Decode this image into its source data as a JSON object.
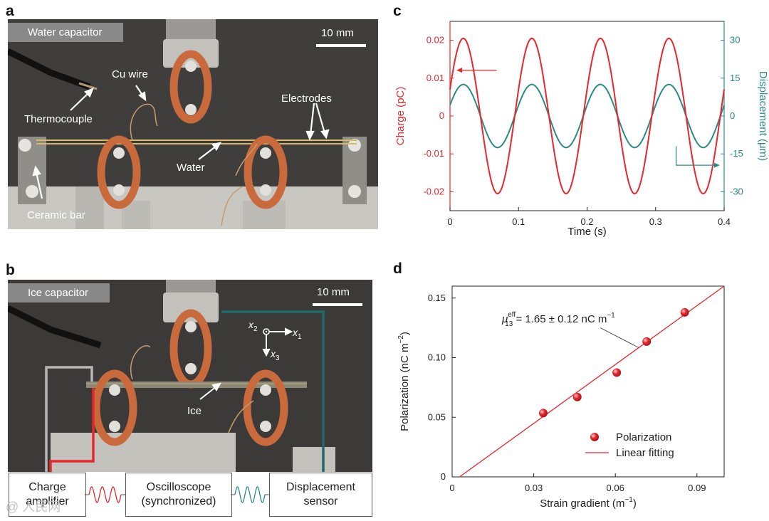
{
  "panels": {
    "a": {
      "letter": "a",
      "title": "Water capacitor",
      "scalebar": "10 mm",
      "labels": {
        "cu_wire": "Cu wire",
        "thermocouple": "Thermocouple",
        "electrodes": "Electrodes",
        "water": "Water",
        "ceramic_bar": "Ceramic bar"
      }
    },
    "b": {
      "letter": "b",
      "title": "Ice capacitor",
      "scalebar": "10 mm",
      "labels": {
        "ice": "Ice",
        "x1": "x",
        "x2": "x",
        "x3": "x",
        "x1_sub": "1",
        "x2_sub": "2",
        "x3_sub": "3"
      },
      "boxes": {
        "charge_amplifier": [
          "Charge",
          "amplifier"
        ],
        "oscilloscope": [
          "Oscilloscope",
          "(synchronized)"
        ],
        "displacement_sensor": [
          "Displacement",
          "sensor"
        ]
      }
    },
    "c": {
      "letter": "c"
    },
    "d": {
      "letter": "d",
      "annotation": {
        "prefix": "μ",
        "sup": "eff",
        "sub": "13",
        "text": " = 1.65 ± 0.12 nC m",
        "exp": "−1"
      }
    }
  },
  "colors": {
    "charge": "#e8262c",
    "displacement": "#2a8a88",
    "fit": "#e8262c",
    "marker": "#e8262c",
    "wire_red": "#e8262c",
    "wire_gray": "#b8b8b8",
    "wire_teal": "#1e6b69"
  },
  "chart_data": [
    {
      "type": "line",
      "xlabel": "Time (s)",
      "ylabel_left": "Charge (pC)",
      "ylabel_right": "Displacement (μm)",
      "xlim": [
        0,
        0.4
      ],
      "ylim_left": [
        -0.025,
        0.025
      ],
      "ylim_right": [
        -37.5,
        37.5
      ],
      "x_ticks": [
        "0",
        "0.1",
        "0.2",
        "0.3",
        "0.4"
      ],
      "y_left_ticks": [
        "0.02",
        "0.01",
        "0",
        "-0.01",
        "-0.02"
      ],
      "y_right_ticks": [
        "30",
        "15",
        "0",
        "-15",
        "-30"
      ],
      "series": [
        {
          "name": "Charge",
          "axis": "left",
          "frequency_hz": 10,
          "amplitude": 0.0205,
          "phase_deg": 20
        },
        {
          "name": "Displacement",
          "axis": "right",
          "frequency_hz": 10,
          "amplitude": 12.5,
          "phase_deg": 20
        }
      ],
      "grid": false
    },
    {
      "type": "scatter",
      "xlabel": "Strain gradient (m",
      "xlabel_exp": "−1",
      "ylabel": "Polarization (nC m",
      "ylabel_exp": "−2",
      "xlim": [
        0,
        0.1
      ],
      "ylim": [
        0,
        0.16
      ],
      "x_ticks": [
        "0",
        "0.03",
        "0.06",
        "0.09"
      ],
      "y_ticks": [
        "0",
        "0.05",
        "0.10",
        "0.15"
      ],
      "points": [
        [
          0.0335,
          0.0535
        ],
        [
          0.046,
          0.067
        ],
        [
          0.0605,
          0.0875
        ],
        [
          0.0715,
          0.1135
        ],
        [
          0.0855,
          0.138
        ]
      ],
      "fit": {
        "slope": 1.65,
        "intercept": -0.0045
      },
      "legend": {
        "placement": "bottom-right",
        "items": [
          "Polarization",
          "Linear fitting"
        ]
      },
      "grid": false
    }
  ]
}
